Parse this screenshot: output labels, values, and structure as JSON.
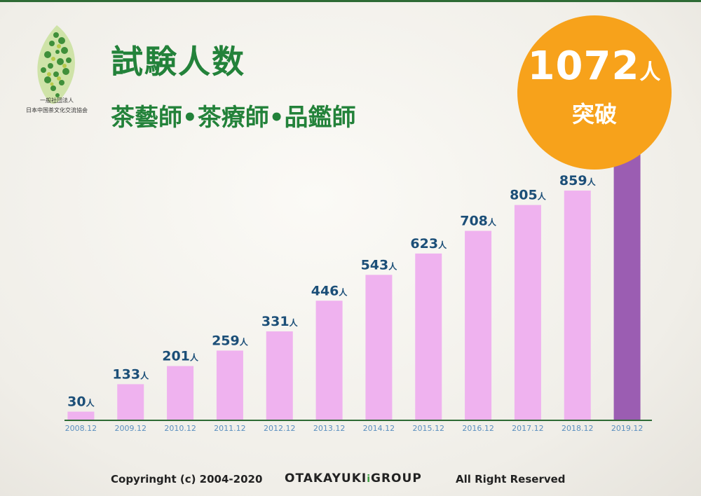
{
  "header": {
    "title": "試験人数",
    "subtitle": "茶藝師•茶療師•品鑑師"
  },
  "logo": {
    "icon": "tea-leaf-logo",
    "org_line1": "一般社団法人",
    "org_line2": "日本中国茶文化交流協会"
  },
  "badge": {
    "number": "1072",
    "unit": "人",
    "text": "突破"
  },
  "colors": {
    "title_green": "#23823a",
    "bar_pink": "#efb2ef",
    "bar_purple": "#9b5db2",
    "label_blue": "#1c4f78",
    "badge_orange": "#f7a21b",
    "axis_green": "#2e6b35",
    "tick_blue": "#5a8fbf"
  },
  "chart_data": {
    "type": "bar",
    "categories": [
      "2008.12",
      "2009.12",
      "2010.12",
      "2011.12",
      "2012.12",
      "2013.12",
      "2014.12",
      "2015.12",
      "2016.12",
      "2017.12",
      "2018.12",
      "2019.12"
    ],
    "values": [
      30,
      133,
      201,
      259,
      331,
      446,
      543,
      623,
      708,
      805,
      859,
      1072
    ],
    "labels": [
      "30",
      "133",
      "201",
      "259",
      "331",
      "446",
      "543",
      "623",
      "708",
      "805",
      "859",
      null
    ],
    "label_unit": "人",
    "highlight_index": 11,
    "title": "試験人数",
    "xlabel": "",
    "ylabel": "",
    "ylim": [
      0,
      1072
    ],
    "grid": false,
    "legend": "none"
  },
  "footer": {
    "copyright": "Copyringht (c) 2004-2020",
    "brand_main": "OTAKAYUKI",
    "brand_mark": "ⅰ",
    "brand_tail": "GROUP",
    "rights": "All Right Reserved"
  }
}
